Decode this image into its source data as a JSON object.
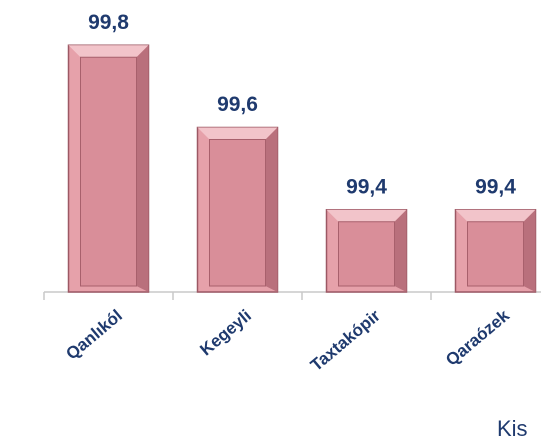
{
  "chart_data": {
    "type": "bar",
    "categories": [
      "Qanlıkól",
      "Kegeyli",
      "Taxtakópir",
      "Qaraózek"
    ],
    "values": [
      99.8,
      99.6,
      99.4,
      99.4
    ],
    "value_labels": [
      "99,8",
      "99,6",
      "99,4",
      "99,4"
    ],
    "color": "#e6a1aa",
    "ylim": [
      99.2,
      99.91
    ],
    "annotation": "Kis"
  }
}
